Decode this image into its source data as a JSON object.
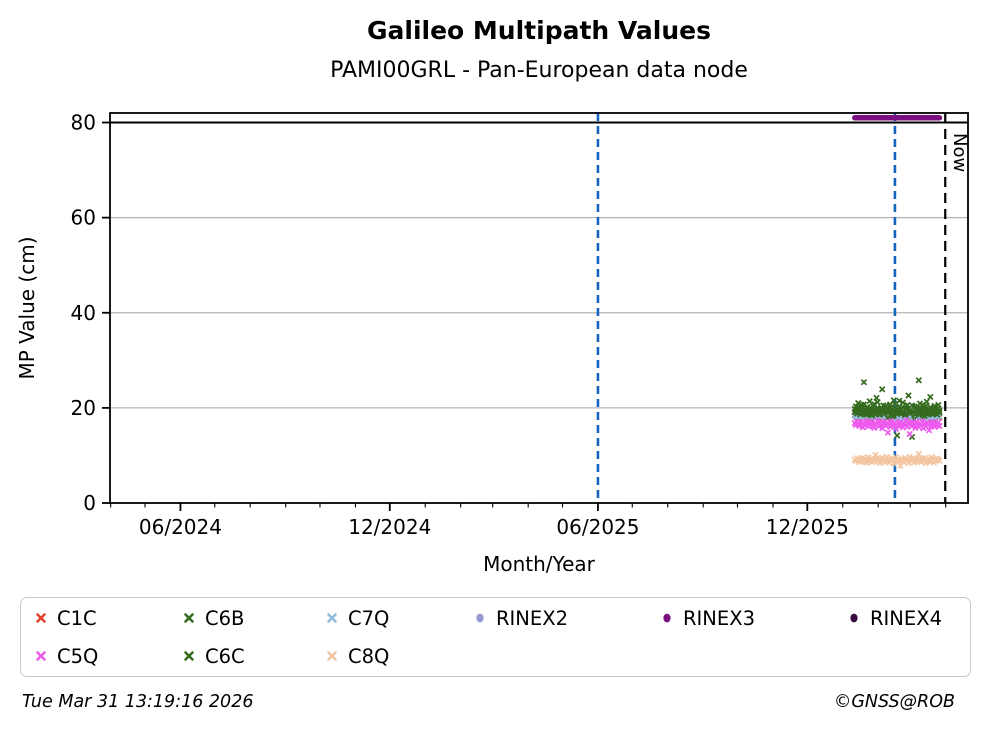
{
  "page": {
    "title": "Galileo Multipath Values",
    "subtitle": "PAMI00GRL - Pan-European data node",
    "footer_left": "Tue Mar 31 13:19:16 2026",
    "footer_right": "©GNSS@ROB"
  },
  "chart_data": {
    "type": "scatter",
    "title": "Galileo Multipath Values",
    "subtitle": "PAMI00GRL - Pan-European data node",
    "xlabel": "Month/Year",
    "ylabel": "MP Value (cm)",
    "x_unit": "decimal_year",
    "xlim_decimal_year": [
      2024.245,
      2026.3
    ],
    "ylim": [
      0,
      82
    ],
    "y_ticks": [
      0,
      20,
      40,
      60,
      80
    ],
    "x_major_ticks": [
      {
        "value": 2024.4137,
        "label": "06/2024"
      },
      {
        "value": 2024.9151,
        "label": "12/2024"
      },
      {
        "value": 2025.4137,
        "label": "06/2025"
      },
      {
        "value": 2025.9151,
        "label": "12/2025"
      }
    ],
    "x_minor_ticks": [
      2024.2466,
      2024.3288,
      2024.4959,
      2024.5808,
      2024.6658,
      2024.7479,
      2024.8329,
      2025.0,
      2025.0849,
      2025.1616,
      2025.2466,
      2025.3288,
      2025.4959,
      2025.5808,
      2025.6658,
      2025.7479,
      2025.8329,
      2026.0,
      2026.0849,
      2026.1616,
      2026.2466
    ],
    "grid": "horizontal",
    "grid_values": [
      20,
      40,
      60
    ],
    "grid_color": "#b4b4b4",
    "hlines": [
      {
        "y": 80,
        "color": "#000000",
        "style": "solid",
        "name": "threshold-80-line"
      }
    ],
    "vlines": [
      {
        "name": "vline-blue-1",
        "x": 2025.4137,
        "color": "#1565c0",
        "width": 2.6,
        "dash": "8 5",
        "label": ""
      },
      {
        "name": "vline-blue-2",
        "x": 2026.125,
        "color": "#1565c0",
        "width": 2.6,
        "dash": "8 5",
        "label": ""
      },
      {
        "name": "now-line",
        "x": 2026.2455,
        "color": "#000000",
        "width": 2.2,
        "dash": "10 6",
        "label": "Now"
      }
    ],
    "legend_position": "bottom",
    "x_start": 2026.0288,
    "x_step": 0.00274,
    "n_points": 75,
    "series": [
      {
        "name": "C1C",
        "color": "#e2442c",
        "marker": "x",
        "values": [
          18.5,
          18.2,
          18.7,
          18.3,
          18.0,
          18.6,
          18.4,
          17.9,
          18.8,
          18.2,
          18.5,
          18.1,
          18.6,
          18.3,
          17.8,
          18.7,
          18.2,
          18.4,
          18.0,
          18.9,
          18.3,
          17.9,
          18.5,
          18.2,
          18.6,
          18.1,
          18.8,
          18.3,
          17.8,
          18.4,
          18.6,
          18.0,
          18.3,
          18.7,
          18.1,
          17.9,
          18.5,
          18.2,
          18.8,
          18.4,
          18.0,
          18.6,
          18.2,
          17.8,
          18.5,
          18.3,
          18.9,
          18.1,
          18.4,
          17.9,
          18.6,
          18.2,
          18.7,
          18.3,
          18.0,
          18.5,
          18.8,
          18.1,
          18.3,
          17.9,
          18.6,
          18.4,
          18.2,
          18.7,
          18.0,
          18.3,
          18.5,
          17.8,
          18.2,
          18.6,
          18.1,
          18.4,
          18.8,
          18.3,
          18.0
        ]
      },
      {
        "name": "C7Q",
        "color": "#92bcdc",
        "marker": "x",
        "values": [
          18.4,
          18.1,
          18.6,
          18.2,
          18.8,
          18.0,
          18.5,
          18.3,
          17.9,
          18.7,
          18.2,
          18.4,
          17.8,
          18.6,
          18.3,
          18.0,
          18.9,
          18.2,
          17.7,
          18.5,
          18.1,
          18.6,
          18.3,
          17.9,
          18.4,
          18.8,
          18.0,
          18.2,
          18.6,
          17.8,
          18.3,
          18.5,
          18.1,
          18.7,
          17.9,
          18.2,
          18.4,
          18.0,
          18.6,
          18.3,
          17.7,
          18.5,
          18.2,
          18.8,
          18.1,
          17.9,
          18.4,
          18.6,
          18.0,
          18.3,
          18.7,
          17.8,
          18.2,
          18.5,
          18.1,
          18.9,
          18.3,
          17.9,
          18.6,
          18.2,
          18.4,
          18.0,
          18.7,
          18.3,
          17.8,
          18.5,
          18.1,
          18.6,
          18.2,
          17.9,
          18.8,
          18.3,
          18.0,
          18.4,
          18.2
        ]
      },
      {
        "name": "C6C",
        "color": "#356b1f",
        "marker": "x",
        "values": [
          19.1,
          19.6,
          18.8,
          20.2,
          19.4,
          18.6,
          19.9,
          19.2,
          20.7,
          18.9,
          19.5,
          20.0,
          18.7,
          19.8,
          19.3,
          18.5,
          20.4,
          19.0,
          19.7,
          18.8,
          21.2,
          19.4,
          18.6,
          19.9,
          19.1,
          20.5,
          18.8,
          19.6,
          19.2,
          17.8,
          19.5,
          20.1,
          18.9,
          19.7,
          18.4,
          20.8,
          19.3,
          18.7,
          19.0,
          21.5,
          19.6,
          18.8,
          20.2,
          19.1,
          18.5,
          19.8,
          20.6,
          19.2,
          18.9,
          19.5,
          13.9,
          19.0,
          20.3,
          18.6,
          19.7,
          19.2,
          18.8,
          20.9,
          19.4,
          18.5,
          19.9,
          19.1,
          20.4,
          18.7,
          19.6,
          18.9,
          22.3,
          19.3,
          18.6,
          20.0,
          19.5,
          18.8,
          19.2,
          20.6,
          19.0
        ]
      },
      {
        "name": "C6B",
        "color": "#356b1f",
        "marker": "x",
        "values": [
          19.8,
          20.3,
          19.2,
          21.0,
          19.5,
          18.9,
          20.6,
          19.9,
          25.4,
          19.1,
          18.6,
          20.2,
          19.7,
          21.4,
          19.0,
          18.4,
          19.6,
          20.8,
          19.3,
          22.1,
          19.8,
          18.7,
          19.5,
          20.1,
          23.9,
          19.2,
          18.8,
          20.4,
          19.6,
          17.9,
          19.1,
          20.7,
          19.4,
          18.2,
          21.6,
          19.9,
          19.0,
          14.2,
          19.5,
          20.3,
          18.8,
          19.7,
          21.1,
          19.2,
          18.5,
          20.0,
          19.6,
          22.6,
          19.3,
          18.9,
          20.5,
          19.1,
          17.6,
          19.8,
          20.2,
          19.4,
          25.8,
          18.7,
          19.9,
          20.6,
          19.2,
          18.3,
          19.7,
          21.3,
          19.5,
          18.8,
          20.1,
          19.0,
          16.8,
          19.6,
          20.4,
          19.3,
          18.6,
          19.9,
          19.4
        ]
      },
      {
        "name": "C5Q",
        "color": "#ee59ee",
        "marker": "x",
        "values": [
          16.8,
          16.4,
          17.1,
          16.6,
          16.2,
          17.0,
          16.5,
          15.9,
          16.9,
          16.3,
          17.2,
          16.6,
          16.1,
          16.8,
          16.4,
          17.0,
          16.2,
          15.8,
          16.7,
          16.5,
          17.3,
          16.1,
          16.6,
          16.9,
          15.7,
          16.4,
          17.1,
          16.3,
          16.8,
          14.8,
          16.5,
          16.0,
          17.2,
          16.6,
          16.2,
          16.9,
          15.6,
          16.4,
          16.8,
          16.1,
          17.0,
          16.5,
          15.9,
          16.7,
          16.3,
          17.4,
          16.0,
          16.6,
          14.5,
          16.8,
          16.2,
          16.9,
          16.4,
          15.8,
          17.1,
          16.5,
          16.0,
          16.7,
          16.3,
          17.2,
          15.7,
          16.6,
          16.1,
          16.9,
          16.4,
          15.3,
          16.8,
          16.2,
          17.0,
          16.5,
          16.0,
          16.6,
          16.3,
          16.9,
          16.2
        ]
      },
      {
        "name": "C8Q",
        "color": "#f3c5a0",
        "marker": "x",
        "values": [
          9.1,
          8.8,
          9.4,
          9.0,
          8.6,
          9.3,
          8.9,
          9.5,
          8.7,
          9.2,
          8.5,
          9.0,
          9.6,
          8.8,
          9.3,
          8.6,
          9.1,
          8.9,
          10.1,
          9.4,
          8.7,
          9.2,
          8.4,
          9.0,
          9.5,
          8.8,
          9.3,
          8.6,
          9.7,
          9.1,
          8.5,
          9.2,
          8.9,
          9.4,
          8.3,
          9.0,
          9.6,
          8.7,
          9.2,
          8.8,
          7.8,
          9.3,
          9.0,
          8.6,
          9.5,
          8.9,
          9.1,
          8.4,
          9.7,
          9.2,
          8.8,
          9.3,
          8.5,
          9.0,
          9.4,
          8.7,
          10.3,
          9.1,
          8.6,
          9.2,
          8.9,
          9.5,
          8.4,
          9.0,
          8.8,
          9.3,
          8.7,
          9.6,
          9.0,
          8.5,
          9.2,
          8.8,
          9.4,
          9.1,
          8.9
        ]
      },
      {
        "name": "RINEX3",
        "color": "#7c0f80",
        "marker": "circle",
        "render": "thick-line",
        "values": [
          81,
          81,
          81,
          81,
          81,
          81,
          81,
          81,
          81,
          81,
          81,
          81,
          81,
          81,
          81,
          81,
          81,
          81,
          81,
          81,
          81,
          81,
          81,
          81,
          81,
          81,
          81,
          81,
          81,
          81,
          81,
          81,
          81,
          81,
          81,
          81,
          81,
          81,
          81,
          81,
          81,
          81,
          81,
          81,
          81,
          81,
          81,
          81,
          81,
          81,
          81,
          81,
          81,
          81,
          81,
          81,
          81,
          81,
          81,
          81,
          81,
          81,
          81,
          81,
          81,
          81,
          81,
          81,
          81,
          81,
          81,
          81,
          81,
          81,
          81
        ]
      },
      {
        "name": "RINEX2",
        "color": "#9b99d4",
        "marker": "circle",
        "values": []
      },
      {
        "name": "RINEX4",
        "color": "#380d40",
        "marker": "circle",
        "values": []
      }
    ],
    "legend": {
      "columns": [
        [
          {
            "label": "C1C",
            "color": "#e2442c",
            "marker": "x"
          },
          {
            "label": "C5Q",
            "color": "#ee59ee",
            "marker": "x"
          }
        ],
        [
          {
            "label": "C6B",
            "color": "#356b1f",
            "marker": "x"
          },
          {
            "label": "C6C",
            "color": "#356b1f",
            "marker": "x"
          }
        ],
        [
          {
            "label": "C7Q",
            "color": "#92bcdc",
            "marker": "x"
          },
          {
            "label": "C8Q",
            "color": "#f3c5a0",
            "marker": "x"
          }
        ],
        [
          {
            "label": "RINEX2",
            "color": "#9b99d4",
            "marker": "circle"
          }
        ],
        [
          {
            "label": "RINEX3",
            "color": "#7c0f80",
            "marker": "circle"
          }
        ],
        [
          {
            "label": "RINEX4",
            "color": "#380d40",
            "marker": "circle"
          }
        ]
      ]
    }
  }
}
